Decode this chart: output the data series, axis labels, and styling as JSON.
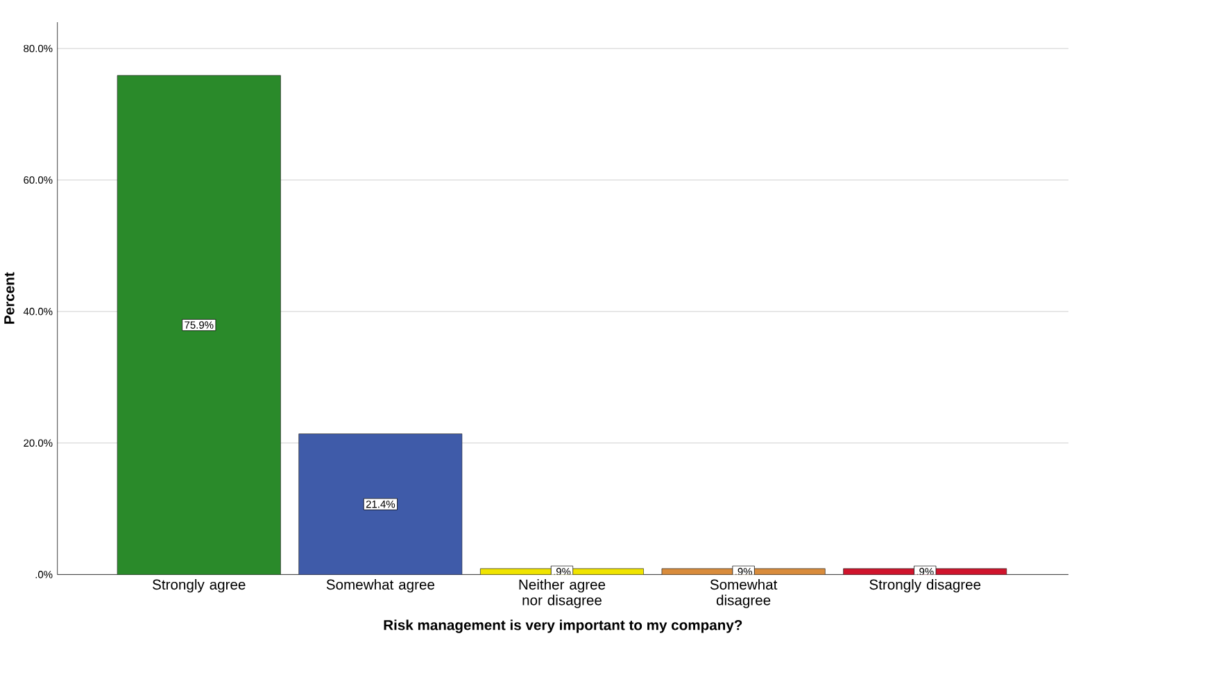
{
  "chart_data": {
    "type": "bar",
    "xlabel": "Risk management is very important to my company?",
    "ylabel": "Percent",
    "categories": [
      "Strongly agree",
      "Somewhat agree",
      "Neither agree nor disagree",
      "Somewhat disagree",
      "Strongly disagree"
    ],
    "values": [
      75.9,
      21.4,
      0.9,
      0.9,
      0.9
    ],
    "value_labels": [
      "75.9%",
      "21.4%",
      ".9%",
      ".9%",
      ".9%"
    ],
    "colors": [
      "#2a8a2a",
      "#3f5ba9",
      "#f0e400",
      "#d98c3c",
      "#d0142c"
    ],
    "ylim": [
      0,
      84
    ],
    "yticks": [
      {
        "value": 0,
        "label": ".0%"
      },
      {
        "value": 20,
        "label": "20.0%"
      },
      {
        "value": 40,
        "label": "40.0%"
      },
      {
        "value": 60,
        "label": "60.0%"
      },
      {
        "value": 80,
        "label": "80.0%"
      }
    ],
    "grid": "y"
  }
}
